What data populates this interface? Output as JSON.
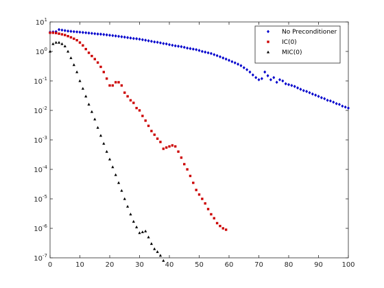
{
  "chart_data": {
    "type": "scatter",
    "yscale": "log",
    "xlim": [
      0,
      100
    ],
    "ylim_exponents": [
      -7,
      1
    ],
    "xticks": [
      0,
      10,
      20,
      30,
      40,
      50,
      60,
      70,
      80,
      90,
      100
    ],
    "ytick_base": "10",
    "yticks": [
      "1",
      "0",
      "-1",
      "-2",
      "-3",
      "-4",
      "-5",
      "-6",
      "-7"
    ],
    "grid": false,
    "legend_position": "top-right",
    "series": [
      {
        "name": "No Preconditioner",
        "color": "#0000cc",
        "marker": "diamond",
        "x": [
          0,
          1,
          2,
          3,
          4,
          5,
          6,
          7,
          8,
          9,
          10,
          11,
          12,
          13,
          14,
          15,
          16,
          17,
          18,
          19,
          20,
          21,
          22,
          23,
          24,
          25,
          26,
          27,
          28,
          29,
          30,
          31,
          32,
          33,
          34,
          35,
          36,
          37,
          38,
          39,
          40,
          41,
          42,
          43,
          44,
          45,
          46,
          47,
          48,
          49,
          50,
          51,
          52,
          53,
          54,
          55,
          56,
          57,
          58,
          59,
          60,
          61,
          62,
          63,
          64,
          65,
          66,
          67,
          68,
          69,
          70,
          71,
          72,
          73,
          74,
          75,
          76,
          77,
          78,
          79,
          80,
          81,
          82,
          83,
          84,
          85,
          86,
          87,
          88,
          89,
          90,
          91,
          92,
          93,
          94,
          95,
          96,
          97,
          98,
          99,
          100
        ],
        "y": [
          4.5,
          4.6,
          4.7,
          5.5,
          5.3,
          5.1,
          4.9,
          4.8,
          4.7,
          4.6,
          4.5,
          4.4,
          4.3,
          4.2,
          4.1,
          4.0,
          3.9,
          3.85,
          3.75,
          3.65,
          3.55,
          3.45,
          3.35,
          3.25,
          3.15,
          3.05,
          2.95,
          2.85,
          2.75,
          2.7,
          2.6,
          2.5,
          2.4,
          2.3,
          2.2,
          2.1,
          2.05,
          1.95,
          1.85,
          1.8,
          1.7,
          1.62,
          1.55,
          1.5,
          1.45,
          1.38,
          1.3,
          1.25,
          1.2,
          1.15,
          1.08,
          1.0,
          0.95,
          0.9,
          0.85,
          0.78,
          0.72,
          0.66,
          0.6,
          0.55,
          0.5,
          0.45,
          0.41,
          0.37,
          0.33,
          0.28,
          0.24,
          0.2,
          0.16,
          0.13,
          0.11,
          0.12,
          0.2,
          0.15,
          0.11,
          0.13,
          0.09,
          0.11,
          0.1,
          0.08,
          0.075,
          0.07,
          0.065,
          0.058,
          0.052,
          0.047,
          0.044,
          0.04,
          0.036,
          0.033,
          0.03,
          0.027,
          0.025,
          0.022,
          0.021,
          0.019,
          0.017,
          0.016,
          0.014,
          0.013,
          0.012
        ]
      },
      {
        "name": "IC(0)",
        "color": "#cc0000",
        "marker": "square",
        "x": [
          0,
          1,
          2,
          3,
          4,
          5,
          6,
          7,
          8,
          9,
          10,
          11,
          12,
          13,
          14,
          15,
          16,
          17,
          18,
          19,
          20,
          21,
          22,
          23,
          24,
          25,
          26,
          27,
          28,
          29,
          30,
          31,
          32,
          33,
          34,
          35,
          36,
          37,
          38,
          39,
          40,
          41,
          42,
          43,
          44,
          45,
          46,
          47,
          48,
          49,
          50,
          51,
          52,
          53,
          54,
          55,
          56,
          57,
          58,
          59
        ],
        "y": [
          4.3,
          4.3,
          4.2,
          4.0,
          3.8,
          3.6,
          3.3,
          3.0,
          2.7,
          2.4,
          2.0,
          1.6,
          1.2,
          0.9,
          0.7,
          0.55,
          0.42,
          0.3,
          0.2,
          0.12,
          0.07,
          0.07,
          0.09,
          0.09,
          0.07,
          0.04,
          0.03,
          0.022,
          0.018,
          0.012,
          0.01,
          0.0065,
          0.0045,
          0.003,
          0.002,
          0.0015,
          0.0011,
          0.00085,
          0.0005,
          0.00055,
          0.0006,
          0.00065,
          0.0006,
          0.0004,
          0.00025,
          0.00015,
          0.0001,
          6e-05,
          3.5e-05,
          2e-05,
          1.4e-05,
          1e-05,
          7e-06,
          4.5e-06,
          3e-06,
          2.2e-06,
          1.5e-06,
          1.2e-06,
          1e-06,
          9e-07
        ]
      },
      {
        "name": "MIC(0)",
        "color": "#000000",
        "marker": "triangle",
        "x": [
          0,
          1,
          2,
          3,
          4,
          5,
          6,
          7,
          8,
          9,
          10,
          11,
          12,
          13,
          14,
          15,
          16,
          17,
          18,
          19,
          20,
          21,
          22,
          23,
          24,
          25,
          26,
          27,
          28,
          29,
          30,
          31,
          32,
          33,
          34,
          35,
          36,
          37,
          38
        ],
        "y": [
          1.0,
          1.8,
          2.0,
          2.0,
          1.8,
          1.5,
          1.0,
          0.6,
          0.35,
          0.2,
          0.1,
          0.055,
          0.03,
          0.016,
          0.009,
          0.005,
          0.0026,
          0.0014,
          0.00075,
          0.0004,
          0.00022,
          0.00012,
          6.5e-05,
          3.5e-05,
          1.9e-05,
          1e-05,
          5.5e-06,
          3e-06,
          1.7e-06,
          1.1e-06,
          7e-07,
          7.5e-07,
          8e-07,
          5e-07,
          3e-07,
          2e-07,
          1.6e-07,
          1.2e-07,
          8e-08
        ]
      }
    ]
  }
}
